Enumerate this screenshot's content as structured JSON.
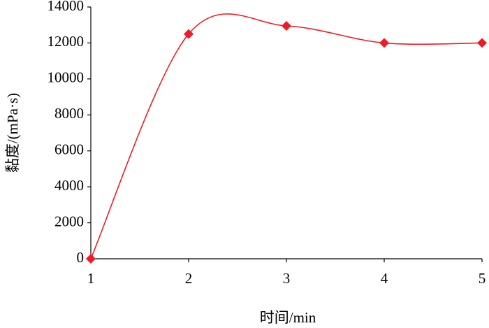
{
  "chart_data": {
    "type": "line",
    "x_label": "时间/min",
    "y_label": "黏度/(mPa·s)",
    "x": [
      1,
      2,
      3,
      4,
      5
    ],
    "values": [
      0,
      12500,
      12950,
      12000,
      12000
    ],
    "color": "#ee1c25",
    "marker": "diamond",
    "smooth": true,
    "xlim": [
      1,
      5
    ],
    "xticks": [
      1,
      2,
      3,
      4,
      5
    ],
    "ylim": [
      0,
      14000
    ],
    "yticks": [
      0,
      2000,
      4000,
      6000,
      8000,
      10000,
      12000,
      14000
    ],
    "grid": false
  }
}
